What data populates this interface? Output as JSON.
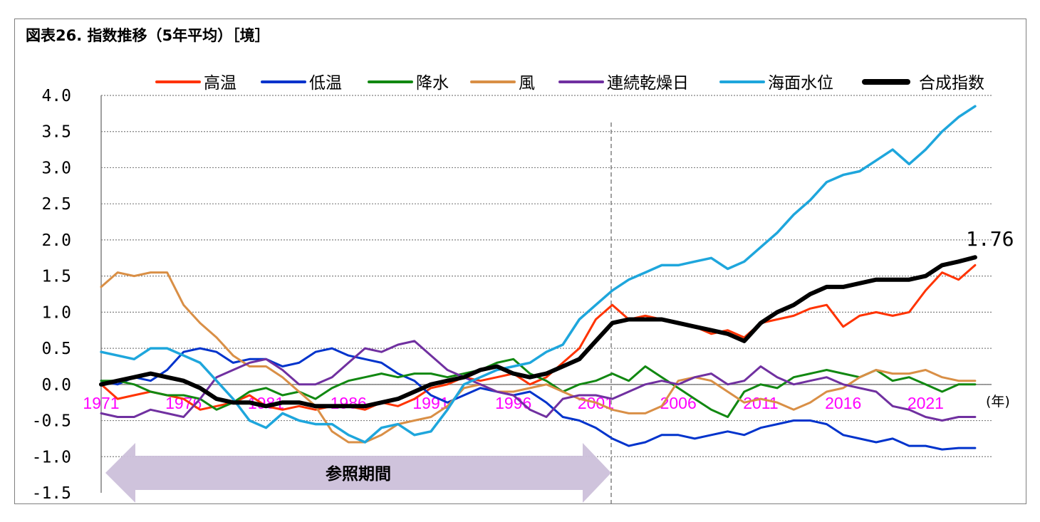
{
  "chart_data": {
    "type": "line",
    "title": "図表26. 指数推移（5年平均）［境］",
    "ylim": [
      -1.5,
      4.0
    ],
    "yticks": [
      "4.0",
      "3.5",
      "3.0",
      "2.5",
      "2.0",
      "1.5",
      "1.0",
      "0.5",
      "0.0",
      "-0.5",
      "-1.0",
      "-1.5"
    ],
    "xlim": [
      1971,
      2025
    ],
    "xtick_labels": [
      "1971",
      "1976",
      "1981",
      "1986",
      "1991",
      "1996",
      "2001",
      "2006",
      "2011",
      "2016",
      "2021"
    ],
    "x_unit": "(年)",
    "grid": "horizontal dotted",
    "legend_position": "top",
    "reference_period_label": "参照期間",
    "reference_period": [
      1971,
      2000
    ],
    "end_annotation": "1.76",
    "x": [
      1971,
      1972,
      1973,
      1974,
      1975,
      1976,
      1977,
      1978,
      1979,
      1980,
      1981,
      1982,
      1983,
      1984,
      1985,
      1986,
      1987,
      1988,
      1989,
      1990,
      1991,
      1992,
      1993,
      1994,
      1995,
      1996,
      1997,
      1998,
      1999,
      2000,
      2001,
      2002,
      2003,
      2004,
      2005,
      2006,
      2007,
      2008,
      2009,
      2010,
      2011,
      2012,
      2013,
      2014,
      2015,
      2016,
      2017,
      2018,
      2019,
      2020,
      2021,
      2022,
      2023,
      2024
    ],
    "series": [
      {
        "name": "高温",
        "color": "#ff3300",
        "width": 3,
        "values": [
          0.0,
          -0.2,
          -0.15,
          -0.1,
          -0.15,
          -0.2,
          -0.35,
          -0.3,
          -0.25,
          -0.15,
          -0.3,
          -0.35,
          -0.3,
          -0.35,
          -0.3,
          -0.3,
          -0.35,
          -0.25,
          -0.3,
          -0.2,
          -0.05,
          0.0,
          0.1,
          0.05,
          0.1,
          0.15,
          0.0,
          0.1,
          0.3,
          0.5,
          0.9,
          1.1,
          0.9,
          0.95,
          0.9,
          0.85,
          0.8,
          0.7,
          0.75,
          0.65,
          0.85,
          0.9,
          0.95,
          1.05,
          1.1,
          0.8,
          0.95,
          1.0,
          0.95,
          1.0,
          1.3,
          1.55,
          1.45,
          1.65
        ]
      },
      {
        "name": "低温",
        "color": "#0033cc",
        "width": 3,
        "values": [
          0.05,
          0.0,
          0.1,
          0.05,
          0.2,
          0.45,
          0.5,
          0.45,
          0.3,
          0.35,
          0.35,
          0.25,
          0.3,
          0.45,
          0.5,
          0.4,
          0.35,
          0.3,
          0.15,
          0.05,
          -0.15,
          -0.25,
          -0.15,
          -0.05,
          -0.1,
          -0.15,
          -0.1,
          -0.25,
          -0.45,
          -0.5,
          -0.6,
          -0.75,
          -0.85,
          -0.8,
          -0.7,
          -0.7,
          -0.75,
          -0.7,
          -0.65,
          -0.7,
          -0.6,
          -0.55,
          -0.5,
          -0.5,
          -0.55,
          -0.7,
          -0.75,
          -0.8,
          -0.75,
          -0.85,
          -0.85,
          -0.9,
          -0.88,
          -0.88
        ]
      },
      {
        "name": "降水",
        "color": "#118811",
        "width": 3,
        "values": [
          0.05,
          0.05,
          0.0,
          -0.1,
          -0.15,
          -0.15,
          -0.2,
          -0.35,
          -0.25,
          -0.1,
          -0.05,
          -0.15,
          -0.1,
          -0.2,
          -0.05,
          0.05,
          0.1,
          0.15,
          0.1,
          0.15,
          0.15,
          0.1,
          0.15,
          0.2,
          0.3,
          0.35,
          0.15,
          0.05,
          -0.1,
          0.0,
          0.05,
          0.15,
          0.05,
          0.25,
          0.1,
          -0.05,
          -0.2,
          -0.35,
          -0.45,
          -0.1,
          0.0,
          -0.05,
          0.1,
          0.15,
          0.2,
          0.15,
          0.1,
          0.2,
          0.05,
          0.1,
          0.0,
          -0.1,
          0.0,
          0.0
        ]
      },
      {
        "name": "風",
        "color": "#d98f46",
        "width": 3,
        "values": [
          1.35,
          1.55,
          1.5,
          1.55,
          1.55,
          1.1,
          0.85,
          0.65,
          0.4,
          0.25,
          0.25,
          0.1,
          -0.1,
          -0.3,
          -0.65,
          -0.8,
          -0.8,
          -0.7,
          -0.55,
          -0.5,
          -0.45,
          -0.3,
          -0.05,
          0.0,
          -0.1,
          -0.1,
          -0.05,
          0.0,
          -0.1,
          -0.2,
          -0.25,
          -0.35,
          -0.4,
          -0.4,
          -0.3,
          0.05,
          0.1,
          0.05,
          -0.1,
          -0.25,
          -0.2,
          -0.25,
          -0.35,
          -0.25,
          -0.1,
          -0.05,
          0.1,
          0.2,
          0.15,
          0.15,
          0.2,
          0.1,
          0.05,
          0.05
        ]
      },
      {
        "name": "連続乾燥日",
        "color": "#7030a0",
        "width": 3,
        "values": [
          -0.4,
          -0.45,
          -0.45,
          -0.35,
          -0.4,
          -0.45,
          -0.2,
          0.1,
          0.2,
          0.3,
          0.35,
          0.2,
          0.0,
          0.0,
          0.1,
          0.3,
          0.5,
          0.45,
          0.55,
          0.6,
          0.4,
          0.2,
          0.1,
          0.0,
          -0.1,
          -0.15,
          -0.35,
          -0.45,
          -0.2,
          -0.15,
          -0.15,
          -0.2,
          -0.1,
          0.0,
          0.05,
          0.0,
          0.1,
          0.15,
          0.0,
          0.05,
          0.25,
          0.1,
          0.0,
          0.05,
          0.1,
          0.0,
          -0.05,
          -0.1,
          -0.3,
          -0.35,
          -0.45,
          -0.5,
          -0.45,
          -0.45
        ]
      },
      {
        "name": "海面水位",
        "color": "#1ea6dc",
        "width": 3.5,
        "values": [
          0.45,
          0.4,
          0.35,
          0.5,
          0.5,
          0.4,
          0.3,
          0.05,
          -0.2,
          -0.5,
          -0.6,
          -0.4,
          -0.5,
          -0.55,
          -0.55,
          -0.7,
          -0.8,
          -0.6,
          -0.55,
          -0.7,
          -0.65,
          -0.35,
          0.0,
          0.1,
          0.2,
          0.25,
          0.3,
          0.45,
          0.55,
          0.9,
          1.1,
          1.3,
          1.45,
          1.55,
          1.65,
          1.65,
          1.7,
          1.75,
          1.6,
          1.7,
          1.9,
          2.1,
          2.35,
          2.55,
          2.8,
          2.9,
          2.95,
          3.1,
          3.25,
          3.05,
          3.25,
          3.5,
          3.7,
          3.85
        ]
      },
      {
        "name": "合成指数",
        "color": "#000000",
        "width": 6,
        "values": [
          0.0,
          0.05,
          0.1,
          0.15,
          0.1,
          0.05,
          -0.05,
          -0.2,
          -0.25,
          -0.25,
          -0.3,
          -0.25,
          -0.25,
          -0.3,
          -0.3,
          -0.3,
          -0.3,
          -0.25,
          -0.2,
          -0.1,
          0.0,
          0.05,
          0.1,
          0.2,
          0.25,
          0.15,
          0.1,
          0.15,
          0.25,
          0.35,
          0.6,
          0.85,
          0.9,
          0.9,
          0.9,
          0.85,
          0.8,
          0.75,
          0.7,
          0.6,
          0.85,
          1.0,
          1.1,
          1.25,
          1.35,
          1.35,
          1.4,
          1.45,
          1.45,
          1.45,
          1.5,
          1.65,
          1.7,
          1.76
        ]
      }
    ]
  }
}
